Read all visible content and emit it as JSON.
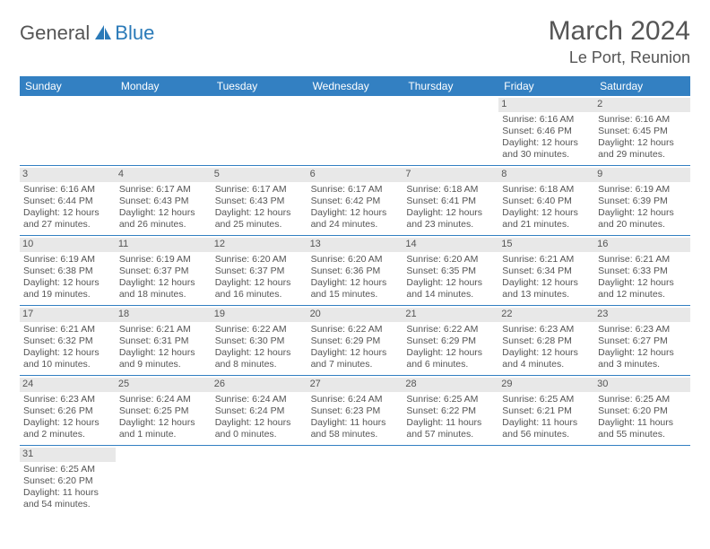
{
  "logo": {
    "part1": "General",
    "part2": "Blue"
  },
  "title": "March 2024",
  "location": "Le Port, Reunion",
  "colors": {
    "header_bg": "#3380c2",
    "header_text": "#ffffff",
    "daynum_bg": "#e8e8e8",
    "border": "#3380c2",
    "text": "#555555",
    "logo_blue": "#2a7ab8"
  },
  "day_names": [
    "Sunday",
    "Monday",
    "Tuesday",
    "Wednesday",
    "Thursday",
    "Friday",
    "Saturday"
  ],
  "leading_blanks": 5,
  "days": [
    {
      "n": "1",
      "sunrise": "Sunrise: 6:16 AM",
      "sunset": "Sunset: 6:46 PM",
      "dl1": "Daylight: 12 hours",
      "dl2": "and 30 minutes."
    },
    {
      "n": "2",
      "sunrise": "Sunrise: 6:16 AM",
      "sunset": "Sunset: 6:45 PM",
      "dl1": "Daylight: 12 hours",
      "dl2": "and 29 minutes."
    },
    {
      "n": "3",
      "sunrise": "Sunrise: 6:16 AM",
      "sunset": "Sunset: 6:44 PM",
      "dl1": "Daylight: 12 hours",
      "dl2": "and 27 minutes."
    },
    {
      "n": "4",
      "sunrise": "Sunrise: 6:17 AM",
      "sunset": "Sunset: 6:43 PM",
      "dl1": "Daylight: 12 hours",
      "dl2": "and 26 minutes."
    },
    {
      "n": "5",
      "sunrise": "Sunrise: 6:17 AM",
      "sunset": "Sunset: 6:43 PM",
      "dl1": "Daylight: 12 hours",
      "dl2": "and 25 minutes."
    },
    {
      "n": "6",
      "sunrise": "Sunrise: 6:17 AM",
      "sunset": "Sunset: 6:42 PM",
      "dl1": "Daylight: 12 hours",
      "dl2": "and 24 minutes."
    },
    {
      "n": "7",
      "sunrise": "Sunrise: 6:18 AM",
      "sunset": "Sunset: 6:41 PM",
      "dl1": "Daylight: 12 hours",
      "dl2": "and 23 minutes."
    },
    {
      "n": "8",
      "sunrise": "Sunrise: 6:18 AM",
      "sunset": "Sunset: 6:40 PM",
      "dl1": "Daylight: 12 hours",
      "dl2": "and 21 minutes."
    },
    {
      "n": "9",
      "sunrise": "Sunrise: 6:19 AM",
      "sunset": "Sunset: 6:39 PM",
      "dl1": "Daylight: 12 hours",
      "dl2": "and 20 minutes."
    },
    {
      "n": "10",
      "sunrise": "Sunrise: 6:19 AM",
      "sunset": "Sunset: 6:38 PM",
      "dl1": "Daylight: 12 hours",
      "dl2": "and 19 minutes."
    },
    {
      "n": "11",
      "sunrise": "Sunrise: 6:19 AM",
      "sunset": "Sunset: 6:37 PM",
      "dl1": "Daylight: 12 hours",
      "dl2": "and 18 minutes."
    },
    {
      "n": "12",
      "sunrise": "Sunrise: 6:20 AM",
      "sunset": "Sunset: 6:37 PM",
      "dl1": "Daylight: 12 hours",
      "dl2": "and 16 minutes."
    },
    {
      "n": "13",
      "sunrise": "Sunrise: 6:20 AM",
      "sunset": "Sunset: 6:36 PM",
      "dl1": "Daylight: 12 hours",
      "dl2": "and 15 minutes."
    },
    {
      "n": "14",
      "sunrise": "Sunrise: 6:20 AM",
      "sunset": "Sunset: 6:35 PM",
      "dl1": "Daylight: 12 hours",
      "dl2": "and 14 minutes."
    },
    {
      "n": "15",
      "sunrise": "Sunrise: 6:21 AM",
      "sunset": "Sunset: 6:34 PM",
      "dl1": "Daylight: 12 hours",
      "dl2": "and 13 minutes."
    },
    {
      "n": "16",
      "sunrise": "Sunrise: 6:21 AM",
      "sunset": "Sunset: 6:33 PM",
      "dl1": "Daylight: 12 hours",
      "dl2": "and 12 minutes."
    },
    {
      "n": "17",
      "sunrise": "Sunrise: 6:21 AM",
      "sunset": "Sunset: 6:32 PM",
      "dl1": "Daylight: 12 hours",
      "dl2": "and 10 minutes."
    },
    {
      "n": "18",
      "sunrise": "Sunrise: 6:21 AM",
      "sunset": "Sunset: 6:31 PM",
      "dl1": "Daylight: 12 hours",
      "dl2": "and 9 minutes."
    },
    {
      "n": "19",
      "sunrise": "Sunrise: 6:22 AM",
      "sunset": "Sunset: 6:30 PM",
      "dl1": "Daylight: 12 hours",
      "dl2": "and 8 minutes."
    },
    {
      "n": "20",
      "sunrise": "Sunrise: 6:22 AM",
      "sunset": "Sunset: 6:29 PM",
      "dl1": "Daylight: 12 hours",
      "dl2": "and 7 minutes."
    },
    {
      "n": "21",
      "sunrise": "Sunrise: 6:22 AM",
      "sunset": "Sunset: 6:29 PM",
      "dl1": "Daylight: 12 hours",
      "dl2": "and 6 minutes."
    },
    {
      "n": "22",
      "sunrise": "Sunrise: 6:23 AM",
      "sunset": "Sunset: 6:28 PM",
      "dl1": "Daylight: 12 hours",
      "dl2": "and 4 minutes."
    },
    {
      "n": "23",
      "sunrise": "Sunrise: 6:23 AM",
      "sunset": "Sunset: 6:27 PM",
      "dl1": "Daylight: 12 hours",
      "dl2": "and 3 minutes."
    },
    {
      "n": "24",
      "sunrise": "Sunrise: 6:23 AM",
      "sunset": "Sunset: 6:26 PM",
      "dl1": "Daylight: 12 hours",
      "dl2": "and 2 minutes."
    },
    {
      "n": "25",
      "sunrise": "Sunrise: 6:24 AM",
      "sunset": "Sunset: 6:25 PM",
      "dl1": "Daylight: 12 hours",
      "dl2": "and 1 minute."
    },
    {
      "n": "26",
      "sunrise": "Sunrise: 6:24 AM",
      "sunset": "Sunset: 6:24 PM",
      "dl1": "Daylight: 12 hours",
      "dl2": "and 0 minutes."
    },
    {
      "n": "27",
      "sunrise": "Sunrise: 6:24 AM",
      "sunset": "Sunset: 6:23 PM",
      "dl1": "Daylight: 11 hours",
      "dl2": "and 58 minutes."
    },
    {
      "n": "28",
      "sunrise": "Sunrise: 6:25 AM",
      "sunset": "Sunset: 6:22 PM",
      "dl1": "Daylight: 11 hours",
      "dl2": "and 57 minutes."
    },
    {
      "n": "29",
      "sunrise": "Sunrise: 6:25 AM",
      "sunset": "Sunset: 6:21 PM",
      "dl1": "Daylight: 11 hours",
      "dl2": "and 56 minutes."
    },
    {
      "n": "30",
      "sunrise": "Sunrise: 6:25 AM",
      "sunset": "Sunset: 6:20 PM",
      "dl1": "Daylight: 11 hours",
      "dl2": "and 55 minutes."
    },
    {
      "n": "31",
      "sunrise": "Sunrise: 6:25 AM",
      "sunset": "Sunset: 6:20 PM",
      "dl1": "Daylight: 11 hours",
      "dl2": "and 54 minutes."
    }
  ]
}
